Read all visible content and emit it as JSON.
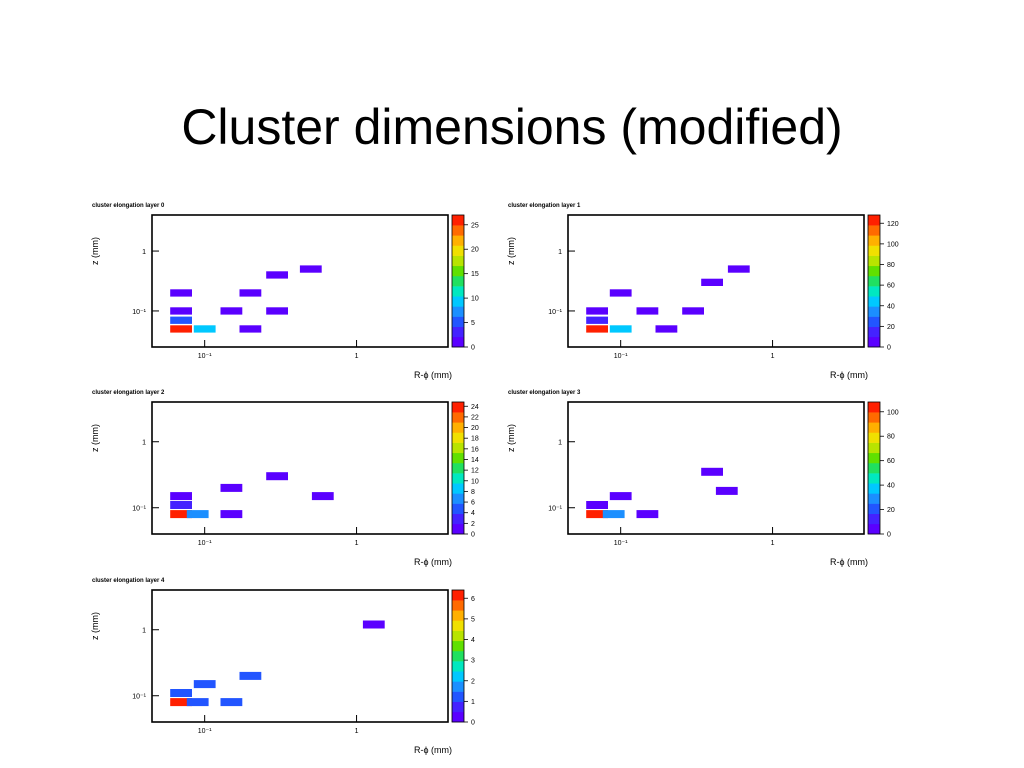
{
  "slide": {
    "title": "Cluster dimensions (modified)"
  },
  "chart_data": [
    {
      "type": "heatmap",
      "title": "cluster elongation layer 0",
      "xlabel": "R-ϕ (mm)",
      "ylabel": "z (mm)",
      "x_scale": "log",
      "y_scale": "log",
      "xlim": [
        0.045,
        4
      ],
      "ylim": [
        0.025,
        4
      ],
      "x_ticks": [
        {
          "value": 0.1,
          "label": "10⁻¹"
        },
        {
          "value": 1,
          "label": "1"
        }
      ],
      "y_ticks": [
        {
          "value": 0.1,
          "label": "10⁻¹"
        },
        {
          "value": 1,
          "label": "1"
        }
      ],
      "colorbar_ticks": [
        "0",
        "5",
        "10",
        "15",
        "20",
        "25"
      ],
      "cells": [
        {
          "x": 0.07,
          "y": 0.05,
          "value": 25
        },
        {
          "x": 0.1,
          "y": 0.05,
          "value": 10
        },
        {
          "x": 0.2,
          "y": 0.05,
          "value": 1
        },
        {
          "x": 0.07,
          "y": 0.07,
          "value": 5
        },
        {
          "x": 0.07,
          "y": 0.1,
          "value": 2
        },
        {
          "x": 0.15,
          "y": 0.1,
          "value": 1
        },
        {
          "x": 0.3,
          "y": 0.1,
          "value": 1
        },
        {
          "x": 0.07,
          "y": 0.2,
          "value": 1
        },
        {
          "x": 0.2,
          "y": 0.2,
          "value": 1
        },
        {
          "x": 0.3,
          "y": 0.4,
          "value": 1
        },
        {
          "x": 0.5,
          "y": 0.5,
          "value": 1
        }
      ]
    },
    {
      "type": "heatmap",
      "title": "cluster elongation layer 1",
      "xlabel": "R-ϕ (mm)",
      "ylabel": "z (mm)",
      "x_scale": "log",
      "y_scale": "log",
      "xlim": [
        0.045,
        4
      ],
      "ylim": [
        0.025,
        4
      ],
      "x_ticks": [
        {
          "value": 0.1,
          "label": "10⁻¹"
        },
        {
          "value": 1,
          "label": "1"
        }
      ],
      "y_ticks": [
        {
          "value": 0.1,
          "label": "10⁻¹"
        },
        {
          "value": 1,
          "label": "1"
        }
      ],
      "colorbar_ticks": [
        "0",
        "20",
        "40",
        "60",
        "80",
        "100",
        "120"
      ],
      "cells": [
        {
          "x": 0.07,
          "y": 0.05,
          "value": 120
        },
        {
          "x": 0.1,
          "y": 0.05,
          "value": 40
        },
        {
          "x": 0.2,
          "y": 0.05,
          "value": 3
        },
        {
          "x": 0.07,
          "y": 0.07,
          "value": 15
        },
        {
          "x": 0.07,
          "y": 0.1,
          "value": 5
        },
        {
          "x": 0.15,
          "y": 0.1,
          "value": 2
        },
        {
          "x": 0.3,
          "y": 0.1,
          "value": 1
        },
        {
          "x": 0.1,
          "y": 0.2,
          "value": 1
        },
        {
          "x": 0.4,
          "y": 0.3,
          "value": 1
        },
        {
          "x": 0.6,
          "y": 0.5,
          "value": 1
        }
      ]
    },
    {
      "type": "heatmap",
      "title": "cluster elongation layer 2",
      "xlabel": "R-ϕ (mm)",
      "ylabel": "z (mm)",
      "x_scale": "log",
      "y_scale": "log",
      "xlim": [
        0.045,
        4
      ],
      "ylim": [
        0.04,
        4
      ],
      "x_ticks": [
        {
          "value": 0.1,
          "label": "10⁻¹"
        },
        {
          "value": 1,
          "label": "1"
        }
      ],
      "y_ticks": [
        {
          "value": 0.1,
          "label": "10⁻¹"
        },
        {
          "value": 1,
          "label": "1"
        }
      ],
      "colorbar_ticks": [
        "0",
        "2",
        "4",
        "6",
        "8",
        "10",
        "12",
        "14",
        "16",
        "18",
        "20",
        "22",
        "24"
      ],
      "cells": [
        {
          "x": 0.07,
          "y": 0.08,
          "value": 24
        },
        {
          "x": 0.09,
          "y": 0.08,
          "value": 6
        },
        {
          "x": 0.15,
          "y": 0.08,
          "value": 1
        },
        {
          "x": 0.07,
          "y": 0.11,
          "value": 2
        },
        {
          "x": 0.07,
          "y": 0.15,
          "value": 1
        },
        {
          "x": 0.15,
          "y": 0.2,
          "value": 1
        },
        {
          "x": 0.3,
          "y": 0.3,
          "value": 1
        },
        {
          "x": 0.6,
          "y": 0.15,
          "value": 1
        }
      ]
    },
    {
      "type": "heatmap",
      "title": "cluster elongation layer 3",
      "xlabel": "R-ϕ (mm)",
      "ylabel": "z (mm)",
      "x_scale": "log",
      "y_scale": "log",
      "xlim": [
        0.045,
        4
      ],
      "ylim": [
        0.04,
        4
      ],
      "x_ticks": [
        {
          "value": 0.1,
          "label": "10⁻¹"
        },
        {
          "value": 1,
          "label": "1"
        }
      ],
      "y_ticks": [
        {
          "value": 0.1,
          "label": "10⁻¹"
        },
        {
          "value": 1,
          "label": "1"
        }
      ],
      "colorbar_ticks": [
        "0",
        "20",
        "40",
        "60",
        "80",
        "100"
      ],
      "cells": [
        {
          "x": 0.07,
          "y": 0.08,
          "value": 100
        },
        {
          "x": 0.09,
          "y": 0.08,
          "value": 30
        },
        {
          "x": 0.15,
          "y": 0.08,
          "value": 2
        },
        {
          "x": 0.07,
          "y": 0.11,
          "value": 8
        },
        {
          "x": 0.1,
          "y": 0.15,
          "value": 1
        },
        {
          "x": 0.4,
          "y": 0.35,
          "value": 1
        },
        {
          "x": 0.5,
          "y": 0.18,
          "value": 1
        }
      ]
    },
    {
      "type": "heatmap",
      "title": "cluster elongation layer 4",
      "xlabel": "R-ϕ (mm)",
      "ylabel": "z (mm)",
      "x_scale": "log",
      "y_scale": "log",
      "xlim": [
        0.045,
        4
      ],
      "ylim": [
        0.04,
        4
      ],
      "x_ticks": [
        {
          "value": 0.1,
          "label": "10⁻¹"
        },
        {
          "value": 1,
          "label": "1"
        }
      ],
      "y_ticks": [
        {
          "value": 0.1,
          "label": "10⁻¹"
        },
        {
          "value": 1,
          "label": "1"
        }
      ],
      "colorbar_ticks": [
        "0",
        "1",
        "2",
        "3",
        "4",
        "5",
        "6"
      ],
      "cells": [
        {
          "x": 0.07,
          "y": 0.08,
          "value": 6
        },
        {
          "x": 0.09,
          "y": 0.08,
          "value": 1
        },
        {
          "x": 0.15,
          "y": 0.08,
          "value": 1
        },
        {
          "x": 0.07,
          "y": 0.11,
          "value": 1
        },
        {
          "x": 0.1,
          "y": 0.15,
          "value": 1
        },
        {
          "x": 0.2,
          "y": 0.2,
          "value": 1
        },
        {
          "x": 1.3,
          "y": 1.2,
          "value": 0.2
        }
      ]
    }
  ]
}
